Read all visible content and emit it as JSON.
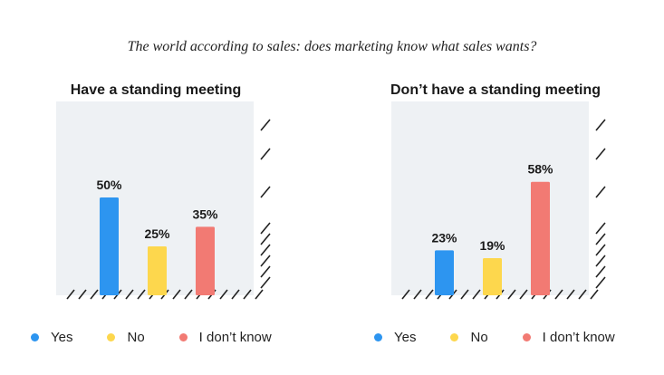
{
  "title": "The world according to sales: does marketing know what sales wants?",
  "legend": {
    "items": [
      {
        "label": "Yes",
        "color": "#2d95f0"
      },
      {
        "label": "No",
        "color": "#fdd74d"
      },
      {
        "label": "I don’t know",
        "color": "#f27a73"
      }
    ]
  },
  "chart_data": [
    {
      "type": "bar",
      "title": "Have a standing meeting",
      "categories": [
        "Yes",
        "No",
        "I don’t know"
      ],
      "values": [
        50,
        25,
        35
      ],
      "value_labels": [
        "50%",
        "25%",
        "35%"
      ],
      "colors": [
        "#2d95f0",
        "#fdd74d",
        "#f27a73"
      ],
      "ylim": [
        0,
        100
      ],
      "grid": false,
      "legend_position": "bottom"
    },
    {
      "type": "bar",
      "title": "Don’t have a standing meeting",
      "categories": [
        "Yes",
        "No",
        "I don’t know"
      ],
      "values": [
        23,
        19,
        58
      ],
      "value_labels": [
        "23%",
        "19%",
        "58%"
      ],
      "colors": [
        "#2d95f0",
        "#fdd74d",
        "#f27a73"
      ],
      "ylim": [
        0,
        100
      ],
      "grid": false,
      "legend_position": "bottom"
    }
  ]
}
